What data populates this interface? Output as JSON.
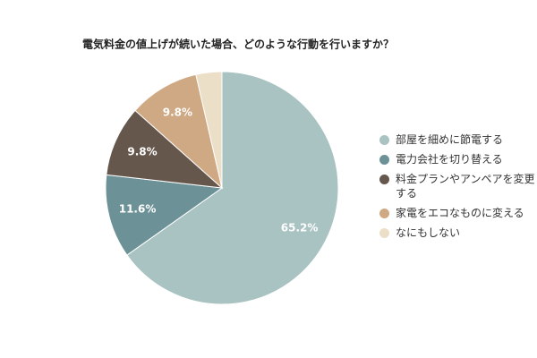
{
  "chart_data": {
    "type": "pie",
    "title": "電気料金の値上げが続いた場合、どのような行動を行いますか？",
    "categories": [
      "部屋を細めに節電する",
      "電力会社を切り替える",
      "料金プランやアンペアを変更する",
      "家電をエコなものに変える",
      "なにもしない"
    ],
    "values": [
      65.2,
      11.6,
      9.8,
      9.8,
      3.6
    ],
    "value_labels": [
      "65.2%",
      "11.6%",
      "9.8%",
      "9.8%",
      null
    ],
    "colors": [
      "#a9c2c2",
      "#6c9197",
      "#66574d",
      "#cfa884",
      "#ecdfc7"
    ],
    "legend": "right"
  }
}
